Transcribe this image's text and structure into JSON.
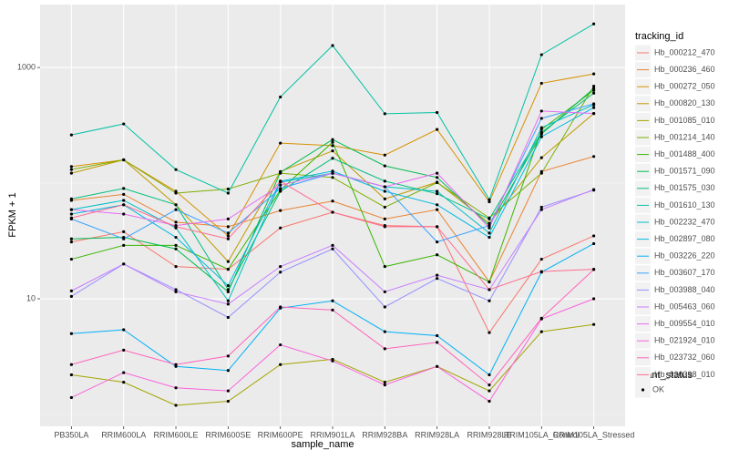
{
  "chart_data": {
    "type": "line",
    "y_label": "FPKM + 1",
    "x_label": "sample_name",
    "log_y": true,
    "grid": true,
    "legend_title": "tracking_id",
    "legend_position": "right",
    "point_color": "#000000",
    "point_legend": {
      "title": "quant_status",
      "label": "OK"
    },
    "ylim": [
      0.79,
      3500
    ],
    "yticks": [
      10,
      1000
    ],
    "categories": [
      "PB350LA",
      "RRIM600LA",
      "RRIM600LE",
      "RRIM600SE",
      "RRIM600PE",
      "RRIM901LA",
      "RRIM928BA",
      "RRIM928LA",
      "RRIM928LE",
      "RRIM105LA_Control",
      "RRIM105LA_Stressed"
    ],
    "series": [
      {
        "name": "Hb_000212_470",
        "color": "#F8766D",
        "values": [
          31,
          38,
          19,
          18,
          41,
          56,
          43,
          42,
          5.1,
          22,
          35
        ]
      },
      {
        "name": "Hb_000236_460",
        "color": "#EA8331",
        "values": [
          71,
          80,
          46,
          42,
          58,
          70,
          49,
          59,
          14,
          126,
          170
        ]
      },
      {
        "name": "Hb_000272_050",
        "color": "#D89000",
        "values": [
          139,
          159,
          85,
          35,
          222,
          211,
          175,
          291,
          69,
          730,
          880
        ]
      },
      {
        "name": "Hb_000820_130",
        "color": "#C09B00",
        "values": [
          122,
          159,
          65,
          21,
          126,
          190,
          73,
          102,
          45,
          166,
          400
        ]
      },
      {
        "name": "Hb_001085_010",
        "color": "#A3A500",
        "values": [
          2.2,
          1.9,
          1.2,
          1.3,
          2.7,
          3.0,
          1.9,
          2.6,
          1.6,
          5.2,
          6.0
        ]
      },
      {
        "name": "Hb_001214_140",
        "color": "#7CAE00",
        "values": [
          131,
          159,
          82,
          89,
          122,
          112,
          62,
          101,
          50,
          122,
          690
        ]
      },
      {
        "name": "Hb_001488_400",
        "color": "#39B600",
        "values": [
          22,
          29,
          29,
          18,
          87,
          226,
          19,
          24,
          14,
          291,
          635
        ]
      },
      {
        "name": "Hb_001571_090",
        "color": "#00BB4E",
        "values": [
          33,
          34,
          27,
          11.5,
          124,
          238,
          141,
          112,
          43,
          266,
          660
        ]
      },
      {
        "name": "Hb_001575_030",
        "color": "#00BF7D",
        "values": [
          73,
          90,
          65,
          12,
          85,
          164,
          104,
          81,
          49,
          275,
          600
        ]
      },
      {
        "name": "Hb_001610_130",
        "color": "#00C1A3",
        "values": [
          261,
          325,
          131,
          82,
          556,
          1547,
          398,
          408,
          72,
          1290,
          2380
        ]
      },
      {
        "name": "Hb_002232_470",
        "color": "#00BFC4",
        "values": [
          59,
          71,
          41,
          9.6,
          102,
          122,
          93,
          85,
          37,
          302,
          476
        ]
      },
      {
        "name": "Hb_002897_080",
        "color": "#00BAE0",
        "values": [
          54,
          65,
          34,
          13,
          104,
          127,
          85,
          65,
          34,
          252,
          450
        ]
      },
      {
        "name": "Hb_003226_220",
        "color": "#00B0F6",
        "values": [
          5.0,
          5.4,
          2.6,
          2.4,
          8.3,
          9.6,
          5.2,
          4.8,
          2.2,
          17,
          30
        ]
      },
      {
        "name": "Hb_003607_170",
        "color": "#35A2FF",
        "values": [
          49,
          33,
          59,
          37,
          90,
          122,
          93,
          31,
          43,
          363,
          485
        ]
      },
      {
        "name": "Hb_003988_040",
        "color": "#9590FF",
        "values": [
          10.5,
          20,
          12,
          6.9,
          17,
          27,
          8.5,
          15,
          9.6,
          62,
          87
        ]
      },
      {
        "name": "Hb_005463_060",
        "color": "#C77CFF",
        "values": [
          11.7,
          20,
          11.5,
          9.0,
          19,
          29,
          11.5,
          16,
          12,
          59,
          88
        ]
      },
      {
        "name": "Hb_009554_010",
        "color": "#E76BF3",
        "values": [
          59,
          54,
          43,
          49,
          96,
          122,
          93,
          122,
          41,
          420,
          400
        ]
      },
      {
        "name": "Hb_021924_010",
        "color": "#FA62DB",
        "values": [
          1.4,
          2.3,
          1.7,
          1.6,
          4.0,
          2.9,
          1.8,
          2.6,
          1.3,
          6.7,
          10
        ]
      },
      {
        "name": "Hb_023732_060",
        "color": "#FF62BC",
        "values": [
          2.7,
          3.6,
          2.7,
          3.2,
          8.5,
          8.0,
          3.7,
          4.2,
          1.8,
          6.8,
          17.9
        ]
      },
      {
        "name": "Hb_026398_010",
        "color": "#FF6C91",
        "values": [
          50,
          65,
          42,
          33,
          104,
          56,
          42,
          42,
          12,
          17.2,
          18
        ]
      }
    ]
  }
}
